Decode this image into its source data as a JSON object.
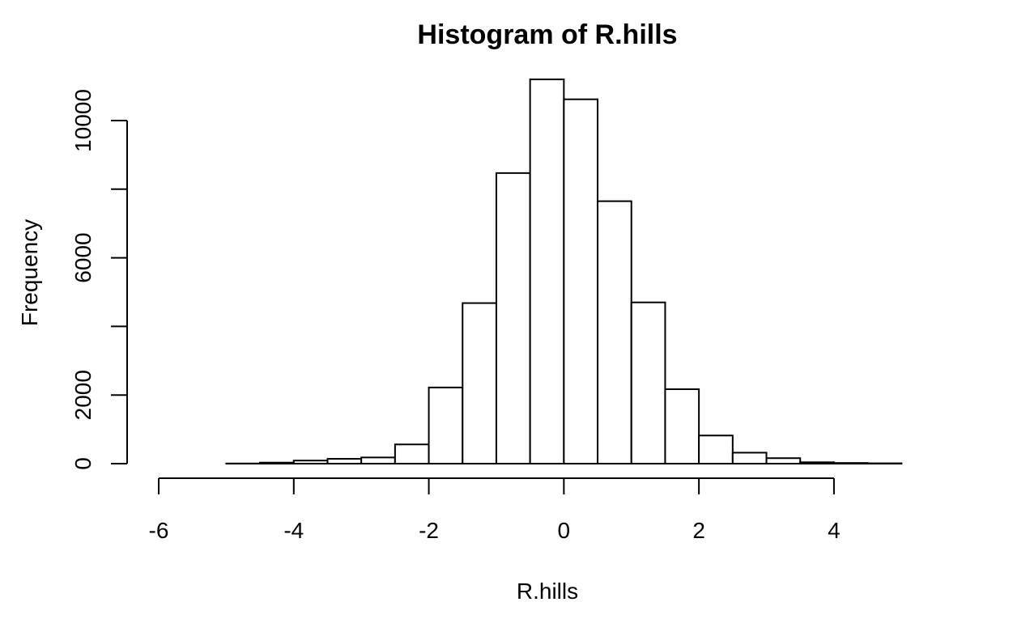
{
  "chart_data": {
    "type": "bar",
    "title": "Histogram of R.hills",
    "xlabel": "R.hills",
    "ylabel": "Frequency",
    "xlim": [
      -6,
      5.5
    ],
    "ylim": [
      0,
      11500
    ],
    "xticks": [
      -6,
      -4,
      -2,
      0,
      2,
      4
    ],
    "xtick_labels": [
      "-6",
      "-4",
      "-2",
      "0",
      "2",
      "4"
    ],
    "yticks": [
      0,
      2000,
      4000,
      6000,
      8000,
      10000
    ],
    "ytick_labels": [
      "0",
      "2000",
      "",
      "6000",
      "",
      "10000"
    ],
    "bins": [
      {
        "x0": -6.0,
        "x1": -5.5,
        "count": 0
      },
      {
        "x0": -5.5,
        "x1": -5.0,
        "count": 0
      },
      {
        "x0": -5.0,
        "x1": -4.5,
        "count": 5
      },
      {
        "x0": -4.5,
        "x1": -4.0,
        "count": 30
      },
      {
        "x0": -4.0,
        "x1": -3.5,
        "count": 90
      },
      {
        "x0": -3.5,
        "x1": -3.0,
        "count": 140
      },
      {
        "x0": -3.0,
        "x1": -2.5,
        "count": 180
      },
      {
        "x0": -2.5,
        "x1": -2.0,
        "count": 560
      },
      {
        "x0": -2.0,
        "x1": -1.5,
        "count": 2220
      },
      {
        "x0": -1.5,
        "x1": -1.0,
        "count": 4680
      },
      {
        "x0": -1.0,
        "x1": -0.5,
        "count": 8470
      },
      {
        "x0": -0.5,
        "x1": 0.0,
        "count": 11200
      },
      {
        "x0": 0.0,
        "x1": 0.5,
        "count": 10620
      },
      {
        "x0": 0.5,
        "x1": 1.0,
        "count": 7650
      },
      {
        "x0": 1.0,
        "x1": 1.5,
        "count": 4700
      },
      {
        "x0": 1.5,
        "x1": 2.0,
        "count": 2170
      },
      {
        "x0": 2.0,
        "x1": 2.5,
        "count": 820
      },
      {
        "x0": 2.5,
        "x1": 3.0,
        "count": 320
      },
      {
        "x0": 3.0,
        "x1": 3.5,
        "count": 160
      },
      {
        "x0": 3.5,
        "x1": 4.0,
        "count": 40
      },
      {
        "x0": 4.0,
        "x1": 4.5,
        "count": 20
      },
      {
        "x0": 4.5,
        "x1": 5.0,
        "count": 10
      },
      {
        "x0": 5.0,
        "x1": 5.5,
        "count": 0
      }
    ],
    "grid": false,
    "legend": "none"
  }
}
